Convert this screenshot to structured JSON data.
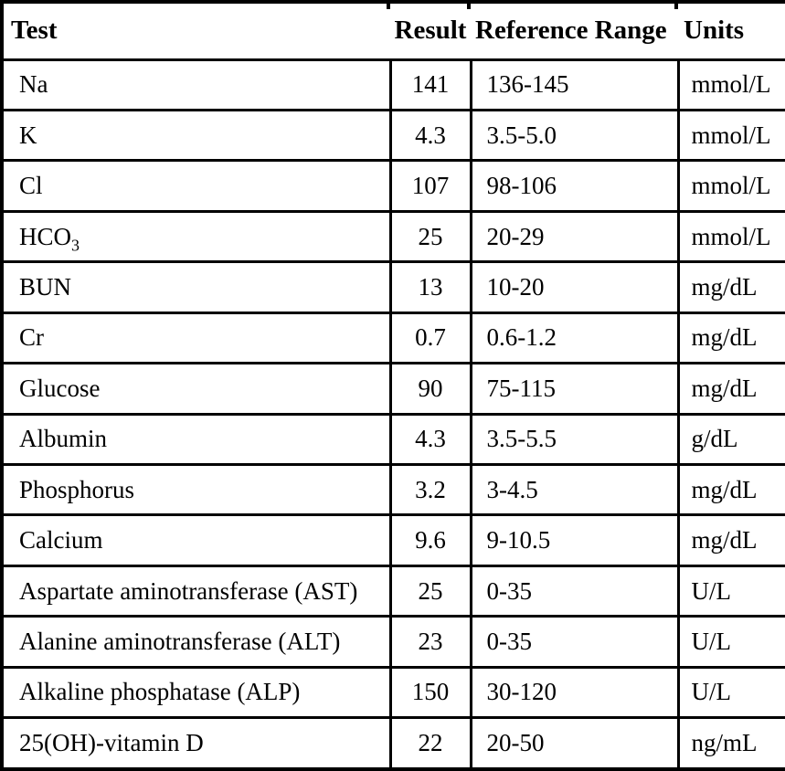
{
  "page": {
    "background_color": "#ffffff",
    "line_color": "#000000",
    "text_color": "#000000"
  },
  "table": {
    "columns": [
      {
        "label": "Test"
      },
      {
        "label": "Result"
      },
      {
        "label": "Reference Range"
      },
      {
        "label": "Units"
      }
    ],
    "rows": [
      {
        "test": "Na",
        "test_sub": "",
        "result": "141",
        "range": "136-145",
        "units": "mmol/L"
      },
      {
        "test": "K",
        "test_sub": "",
        "result": "4.3",
        "range": "3.5-5.0",
        "units": "mmol/L"
      },
      {
        "test": "Cl",
        "test_sub": "",
        "result": "107",
        "range": "98-106",
        "units": "mmol/L"
      },
      {
        "test": "HCO",
        "test_sub": "3",
        "result": "25",
        "range": "20-29",
        "units": "mmol/L"
      },
      {
        "test": "BUN",
        "test_sub": "",
        "result": "13",
        "range": "10-20",
        "units": "mg/dL"
      },
      {
        "test": "Cr",
        "test_sub": "",
        "result": "0.7",
        "range": "0.6-1.2",
        "units": "mg/dL"
      },
      {
        "test": "Glucose",
        "test_sub": "",
        "result": "90",
        "range": "75-115",
        "units": "mg/dL"
      },
      {
        "test": "Albumin",
        "test_sub": "",
        "result": "4.3",
        "range": "3.5-5.5",
        "units": "g/dL"
      },
      {
        "test": "Phosphorus",
        "test_sub": "",
        "result": "3.2",
        "range": "3-4.5",
        "units": "mg/dL"
      },
      {
        "test": "Calcium",
        "test_sub": "",
        "result": "9.6",
        "range": "9-10.5",
        "units": "mg/dL"
      },
      {
        "test": "Aspartate aminotransferase (AST)",
        "test_sub": "",
        "result": "25",
        "range": "0-35",
        "units": "U/L"
      },
      {
        "test": "Alanine aminotransferase (ALT)",
        "test_sub": "",
        "result": "23",
        "range": "0-35",
        "units": "U/L"
      },
      {
        "test": "Alkaline phosphatase (ALP)",
        "test_sub": "",
        "result": "150",
        "range": "30-120",
        "units": "U/L"
      },
      {
        "test": "25(OH)-vitamin D",
        "test_sub": "",
        "result": "22",
        "range": "20-50",
        "units": "ng/mL"
      }
    ]
  }
}
